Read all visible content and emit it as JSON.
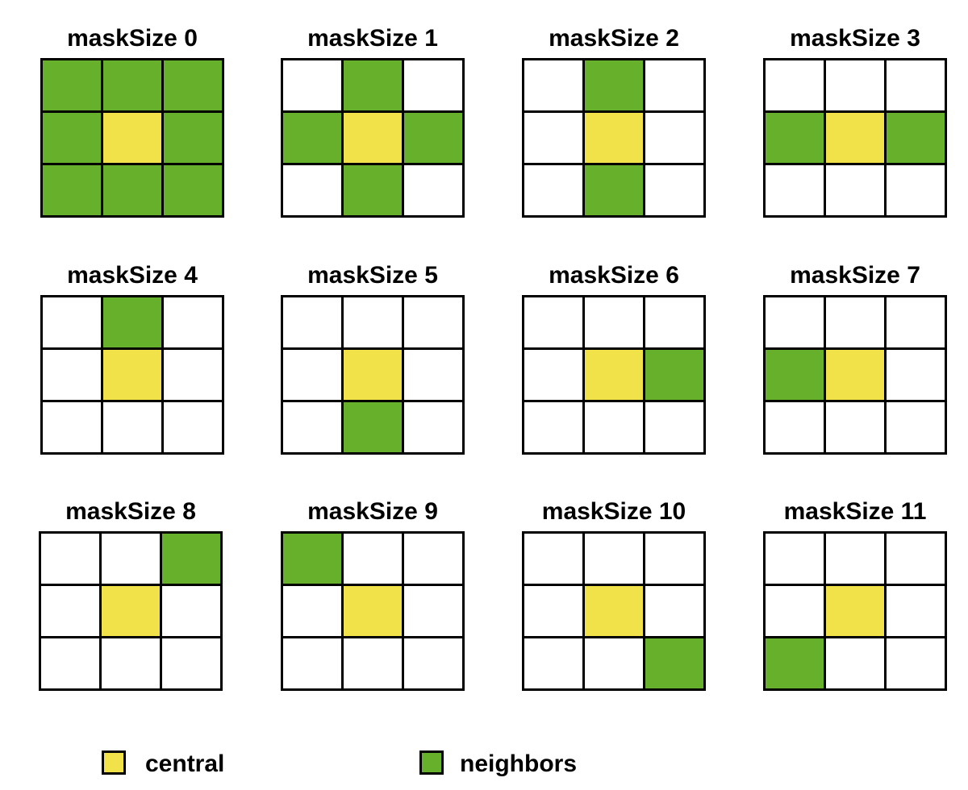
{
  "colors": {
    "central": "#f1e24a",
    "neighbor": "#66b02c",
    "empty": "#ffffff",
    "border": "#000000"
  },
  "panels": [
    {
      "title": "maskSize 0",
      "neighbors": [
        0,
        1,
        2,
        3,
        5,
        6,
        7,
        8
      ]
    },
    {
      "title": "maskSize 1",
      "neighbors": [
        1,
        3,
        5,
        7
      ]
    },
    {
      "title": "maskSize 2",
      "neighbors": [
        1,
        7
      ]
    },
    {
      "title": "maskSize 3",
      "neighbors": [
        3,
        5
      ]
    },
    {
      "title": "maskSize 4",
      "neighbors": [
        1
      ]
    },
    {
      "title": "maskSize 5",
      "neighbors": [
        7
      ]
    },
    {
      "title": "maskSize 6",
      "neighbors": [
        5
      ]
    },
    {
      "title": "maskSize 7",
      "neighbors": [
        3
      ]
    },
    {
      "title": "maskSize 8",
      "neighbors": [
        2
      ]
    },
    {
      "title": "maskSize 9",
      "neighbors": [
        0
      ]
    },
    {
      "title": "maskSize 10",
      "neighbors": [
        8
      ]
    },
    {
      "title": "maskSize 11",
      "neighbors": [
        6
      ]
    }
  ],
  "central_cell": 4,
  "legend": {
    "central_label": "central",
    "neighbors_label": "neighbors"
  }
}
